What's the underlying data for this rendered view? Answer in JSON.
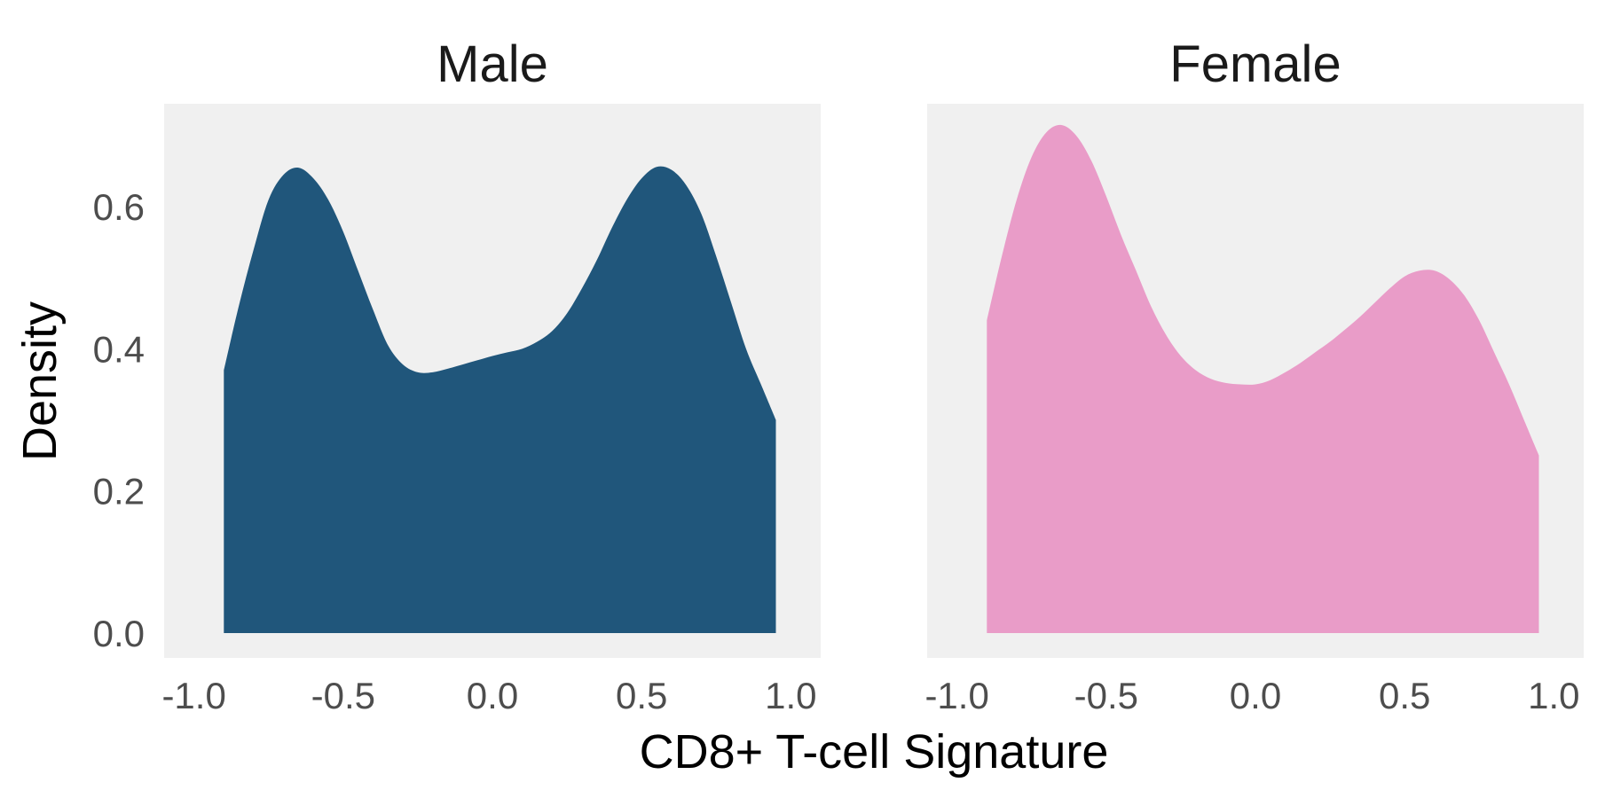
{
  "chart_data": {
    "type": "area",
    "xlabel": "CD8+ T-cell Signature",
    "ylabel": "Density",
    "xlim": [
      -1.1,
      1.1
    ],
    "ylim": [
      -0.035,
      0.745
    ],
    "x_ticks": [
      "-1.0",
      "-0.5",
      "0.0",
      "0.5",
      "1.0"
    ],
    "x_tick_values": [
      -1.0,
      -0.5,
      0.0,
      0.5,
      1.0
    ],
    "y_ticks": [
      "0.0",
      "0.2",
      "0.4",
      "0.6"
    ],
    "y_tick_values": [
      0.0,
      0.2,
      0.4,
      0.6
    ],
    "grid": false,
    "panel_background": "#f0f0f0",
    "panels": [
      {
        "title": "Male",
        "color": "#20567b",
        "x": [
          -0.9,
          -0.85,
          -0.8,
          -0.75,
          -0.7,
          -0.65,
          -0.6,
          -0.55,
          -0.5,
          -0.45,
          -0.4,
          -0.35,
          -0.3,
          -0.25,
          -0.2,
          -0.15,
          -0.1,
          -0.05,
          0.0,
          0.05,
          0.1,
          0.15,
          0.2,
          0.25,
          0.3,
          0.35,
          0.4,
          0.45,
          0.5,
          0.55,
          0.6,
          0.65,
          0.7,
          0.75,
          0.8,
          0.85,
          0.9,
          0.95
        ],
        "y": [
          0.37,
          0.46,
          0.54,
          0.61,
          0.645,
          0.655,
          0.64,
          0.61,
          0.565,
          0.51,
          0.455,
          0.405,
          0.378,
          0.367,
          0.367,
          0.372,
          0.378,
          0.384,
          0.39,
          0.395,
          0.4,
          0.41,
          0.425,
          0.45,
          0.485,
          0.525,
          0.57,
          0.61,
          0.64,
          0.656,
          0.652,
          0.63,
          0.59,
          0.53,
          0.465,
          0.4,
          0.35,
          0.3
        ]
      },
      {
        "title": "Female",
        "color": "#e99cc8",
        "x": [
          -0.9,
          -0.85,
          -0.8,
          -0.75,
          -0.7,
          -0.65,
          -0.6,
          -0.55,
          -0.5,
          -0.45,
          -0.4,
          -0.35,
          -0.3,
          -0.25,
          -0.2,
          -0.15,
          -0.1,
          -0.05,
          0.0,
          0.05,
          0.1,
          0.15,
          0.2,
          0.25,
          0.3,
          0.35,
          0.4,
          0.45,
          0.5,
          0.55,
          0.6,
          0.65,
          0.7,
          0.75,
          0.8,
          0.85,
          0.9,
          0.95
        ],
        "y": [
          0.44,
          0.53,
          0.61,
          0.67,
          0.705,
          0.715,
          0.7,
          0.665,
          0.615,
          0.56,
          0.51,
          0.46,
          0.42,
          0.39,
          0.37,
          0.358,
          0.352,
          0.35,
          0.35,
          0.356,
          0.367,
          0.38,
          0.395,
          0.41,
          0.427,
          0.445,
          0.465,
          0.485,
          0.502,
          0.51,
          0.51,
          0.498,
          0.475,
          0.44,
          0.395,
          0.35,
          0.3,
          0.25
        ]
      }
    ]
  }
}
